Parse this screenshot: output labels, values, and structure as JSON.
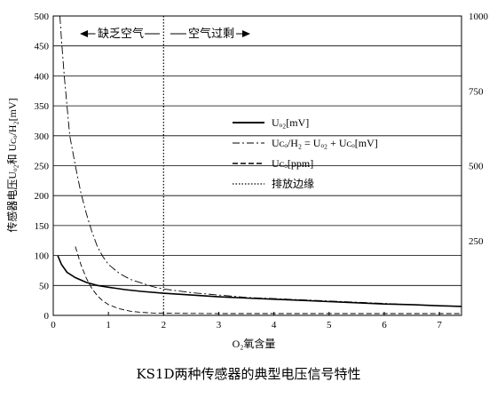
{
  "chart_data": {
    "type": "line",
    "title": "KS1D两种传感器的典型电压信号特性",
    "xlabel": "O₂氧含量",
    "ylabel": "传感器电压Uₒ₂和 Uᴄₒ/H₂[mV]",
    "xlim": [
      0,
      7.4
    ],
    "ylim": [
      0,
      500
    ],
    "y2lim": [
      0,
      1000
    ],
    "x_ticks": [
      "0",
      "1",
      "2",
      "3",
      "4",
      "5",
      "6",
      "7"
    ],
    "y_ticks": [
      "0",
      "50",
      "100",
      "150",
      "200",
      "250",
      "300",
      "350",
      "400",
      "450",
      "500"
    ],
    "y2_ticks": [
      "250",
      "500",
      "750",
      "1000"
    ],
    "grid": "horizontal",
    "vline": {
      "x": 2,
      "label": "排放边缘"
    },
    "annotations": {
      "left": "缺乏空气",
      "right": "空气过剩"
    },
    "series": [
      {
        "name": "Uₒ₂[mV]",
        "style": "solid",
        "axis": "left",
        "points": [
          [
            0.08,
            100
          ],
          [
            0.15,
            85
          ],
          [
            0.25,
            72
          ],
          [
            0.4,
            63
          ],
          [
            0.6,
            55
          ],
          [
            0.8,
            50
          ],
          [
            1.0,
            47
          ],
          [
            1.3,
            43
          ],
          [
            1.6,
            40
          ],
          [
            2.0,
            37
          ],
          [
            2.5,
            34
          ],
          [
            3.0,
            31
          ],
          [
            3.5,
            29
          ],
          [
            4.0,
            27
          ],
          [
            4.5,
            25
          ],
          [
            5.0,
            23
          ],
          [
            5.5,
            21
          ],
          [
            6.0,
            19
          ],
          [
            6.5,
            18
          ],
          [
            7.0,
            16
          ],
          [
            7.4,
            15
          ]
        ]
      },
      {
        "name": "Uᴄₒ/H₂ = Uₒ₂ + Uᴄₒ[mV]",
        "style": "dashdot",
        "axis": "left",
        "points": [
          [
            0.12,
            500
          ],
          [
            0.15,
            460
          ],
          [
            0.2,
            400
          ],
          [
            0.25,
            350
          ],
          [
            0.3,
            300
          ],
          [
            0.4,
            250
          ],
          [
            0.5,
            205
          ],
          [
            0.6,
            170
          ],
          [
            0.7,
            140
          ],
          [
            0.8,
            115
          ],
          [
            0.9,
            98
          ],
          [
            1.0,
            85
          ],
          [
            1.2,
            70
          ],
          [
            1.4,
            60
          ],
          [
            1.6,
            54
          ],
          [
            1.8,
            48
          ],
          [
            2.0,
            44
          ],
          [
            2.5,
            38
          ],
          [
            3.0,
            34
          ],
          [
            3.5,
            30
          ],
          [
            4.0,
            28
          ],
          [
            4.5,
            26
          ],
          [
            5.0,
            24
          ],
          [
            5.5,
            22
          ],
          [
            6.0,
            20
          ],
          [
            6.5,
            18
          ],
          [
            7.0,
            16
          ],
          [
            7.4,
            15
          ]
        ]
      },
      {
        "name": "Uᴄₒ[ppm]",
        "style": "dashed",
        "axis": "left",
        "points": [
          [
            0.4,
            115
          ],
          [
            0.5,
            85
          ],
          [
            0.6,
            62
          ],
          [
            0.7,
            45
          ],
          [
            0.8,
            33
          ],
          [
            0.9,
            24
          ],
          [
            1.0,
            18
          ],
          [
            1.2,
            11
          ],
          [
            1.4,
            7
          ],
          [
            1.6,
            5
          ],
          [
            1.8,
            4
          ],
          [
            2.0,
            3.5
          ],
          [
            3.0,
            3
          ],
          [
            4.0,
            3
          ],
          [
            5.0,
            3
          ],
          [
            6.0,
            3
          ],
          [
            7.0,
            3
          ],
          [
            7.4,
            3
          ]
        ]
      }
    ]
  }
}
